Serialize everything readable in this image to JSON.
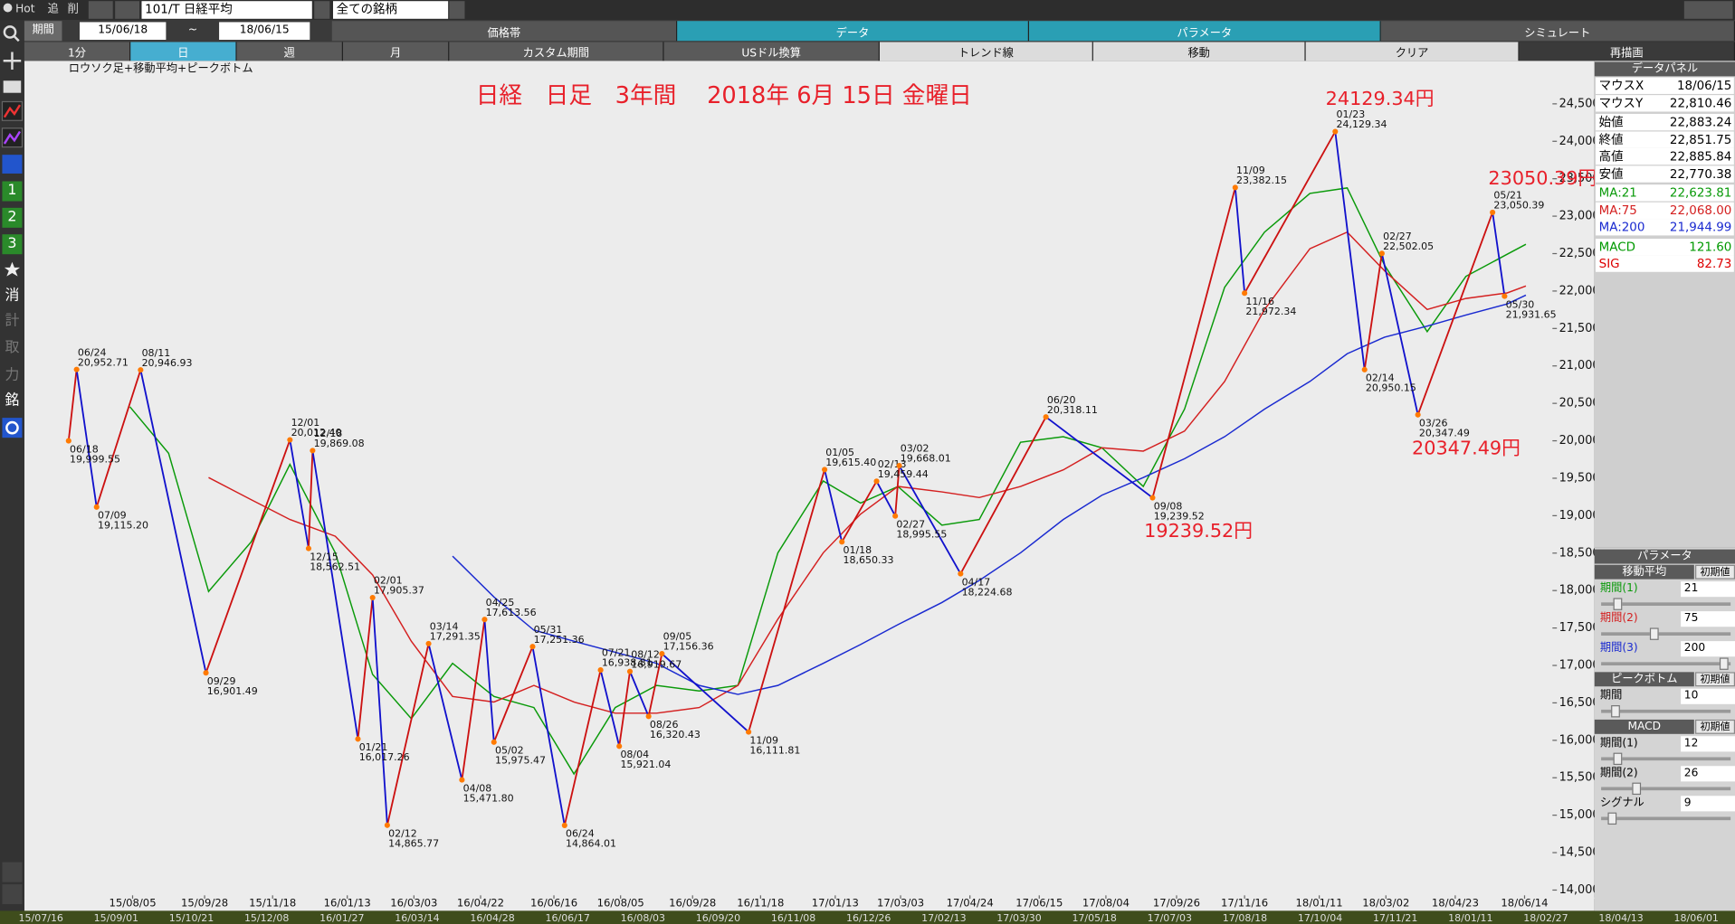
{
  "toolbar": {
    "hot": "Hot",
    "add": "追",
    "delete": "削",
    "symbol": "101/T 日経平均",
    "universe": "全ての銘柄",
    "period_label": "期間",
    "tilde": "~",
    "tabs": [
      "価格帯",
      "データ",
      "パラメータ",
      "シミュレート"
    ],
    "buttons": [
      "1分",
      "日",
      "週",
      "月",
      "カスタム期間",
      "USドル換算",
      "トレンド線",
      "移動",
      "クリア",
      "再描画"
    ]
  },
  "sidebar": [
    "1",
    "2",
    "3",
    "消",
    "計",
    "取",
    "力",
    "銘"
  ],
  "chart_data": {
    "type": "line",
    "title": "日経　日足　3年間　 2018年 6月 15日 金曜日",
    "subtitle": "ロウソク足+移動平均+ピークボトム",
    "annotations": [
      "24129.34円",
      "23050.39円",
      "20347.49円",
      "19239.52円"
    ],
    "xlim": [
      "15/06/18",
      "18/06/15"
    ],
    "xticks": [
      "15/08/05",
      "15/09/28",
      "15/11/18",
      "16/01/13",
      "16/03/03",
      "16/04/22",
      "16/06/16",
      "16/08/05",
      "16/09/28",
      "16/11/18",
      "17/01/13",
      "17/03/03",
      "17/04/24",
      "17/06/15",
      "17/08/04",
      "17/09/26",
      "17/11/16",
      "18/01/11",
      "18/03/02",
      "18/04/23",
      "18/06/14"
    ],
    "ylim": [
      13900,
      25075
    ],
    "yticks": [
      {
        "value": 14000,
        "label": "14,000"
      },
      {
        "value": 14500,
        "label": "14,500"
      },
      {
        "value": 15000,
        "label": "15,000"
      },
      {
        "value": 15500,
        "label": "15,500"
      },
      {
        "value": 16000,
        "label": "16,000"
      },
      {
        "value": 16500,
        "label": "16,500"
      },
      {
        "value": 17000,
        "label": "17,000"
      },
      {
        "value": 17500,
        "label": "17,500"
      },
      {
        "value": 18000,
        "label": "18,000"
      },
      {
        "value": 18500,
        "label": "18,500"
      },
      {
        "value": 19000,
        "label": "19,000"
      },
      {
        "value": 19500,
        "label": "19,500"
      },
      {
        "value": 20000,
        "label": "20,000"
      },
      {
        "value": 20500,
        "label": "20,500"
      },
      {
        "value": 21000,
        "label": "21,000"
      },
      {
        "value": 21500,
        "label": "21,500"
      },
      {
        "value": 22000,
        "label": "22,000"
      },
      {
        "value": 22500,
        "label": "22,500"
      },
      {
        "value": 23000,
        "label": "23,000"
      },
      {
        "value": 23500,
        "label": "23,500"
      },
      {
        "value": 24000,
        "label": "24,000"
      },
      {
        "value": 24500,
        "label": "24,500"
      }
    ],
    "x": [
      "15/07/01",
      "15/08/03",
      "15/09/01",
      "15/10/01",
      "15/11/02",
      "15/12/01",
      "16/01/04",
      "16/02/01",
      "16/03/01",
      "16/04/01",
      "16/05/02",
      "16/06/01",
      "16/07/01",
      "16/08/01",
      "16/09/01",
      "16/10/03",
      "16/11/01",
      "16/12/01",
      "17/01/04",
      "17/02/01",
      "17/03/01",
      "17/04/03",
      "17/05/01",
      "17/06/01",
      "17/07/03",
      "17/08/01",
      "17/09/01",
      "17/10/02",
      "17/11/01",
      "17/12/01",
      "18/01/04",
      "18/02/01",
      "18/03/01",
      "18/04/02",
      "18/05/01",
      "18/06/01",
      "18/06/15"
    ],
    "series": [
      {
        "name": "MA:21",
        "color": "#0a9a0a",
        "values": [
          null,
          20454,
          19833,
          17988,
          18652,
          19686,
          18505,
          16880,
          16290,
          17028,
          16585,
          16437,
          15551,
          16437,
          16733,
          16659,
          16733,
          18505,
          19464,
          19169,
          19390,
          18874,
          18948,
          19981,
          20055,
          19907,
          19390,
          20424,
          22049,
          22787,
          23304,
          23378,
          22344,
          21458,
          22196,
          22492,
          22624
        ]
      },
      {
        "name": "MA:75",
        "color": "#d42020",
        "values": [
          null,
          null,
          null,
          19509,
          19213,
          18948,
          18726,
          18209,
          17323,
          16585,
          16511,
          16733,
          16511,
          16363,
          16363,
          16437,
          16733,
          17619,
          18505,
          19021,
          19390,
          19317,
          19243,
          19390,
          19612,
          19907,
          19863,
          20129,
          20793,
          21753,
          22566,
          22787,
          22270,
          21753,
          21901,
          21975,
          22068
        ]
      },
      {
        "name": "MA:200",
        "color": "#1a2ad0",
        "values": [
          null,
          null,
          null,
          null,
          null,
          null,
          null,
          null,
          null,
          18460,
          17914,
          17471,
          17323,
          17176,
          17028,
          16733,
          16614,
          16733,
          17028,
          17279,
          17545,
          17840,
          18135,
          18505,
          18948,
          19273,
          19509,
          19760,
          20055,
          20424,
          20793,
          21163,
          21384,
          21532,
          21680,
          21827,
          21945
        ]
      }
    ],
    "peaks": {
      "color": "#ff7a00",
      "up_color": "#cc1111",
      "down_color": "#1111cc",
      "dates": [
        "06/18",
        "06/24",
        "07/09",
        "08/11",
        "09/29",
        "12/01",
        "12/15",
        "12/18",
        "01/21",
        "02/01",
        "02/12",
        "03/14",
        "04/08",
        "04/25",
        "05/02",
        "05/31",
        "06/24",
        "07/21",
        "08/04",
        "08/12",
        "08/26",
        "09/05",
        "11/09",
        "01/05",
        "01/18",
        "02/13",
        "02/27",
        "03/02",
        "04/17",
        "06/20",
        "09/08",
        "11/09",
        "11/16",
        "01/23",
        "02/14",
        "02/27",
        "03/26",
        "05/21",
        "05/30"
      ],
      "values": [
        19999.55,
        20952.71,
        19115.2,
        20946.93,
        16901.49,
        20012.4,
        18562.51,
        19869.08,
        16017.26,
        17905.37,
        14865.77,
        17291.35,
        15471.8,
        17613.56,
        15975.47,
        17251.36,
        14864.01,
        16938.81,
        15921.04,
        16919.67,
        16320.43,
        17156.36,
        16111.81,
        19615.4,
        18650.33,
        19459.44,
        18995.55,
        19668.01,
        18224.68,
        20318.11,
        19239.52,
        23382.15,
        21972.34,
        24129.34,
        20950.15,
        22502.05,
        20347.49,
        23050.39,
        21931.65
      ],
      "value_labels": [
        "19,999.55",
        "20,952.71",
        "19,115.20",
        "20,946.93",
        "16,901.49",
        "20,012.40",
        "18,562.51",
        "19,869.08",
        "16,017.26",
        "17,905.37",
        "14,865.77",
        "17,291.35",
        "15,471.80",
        "17,613.56",
        "15,975.47",
        "17,251.36",
        "14,864.01",
        "16,938.81",
        "15,921.04",
        "16,919.67",
        "16,320.43",
        "17,156.36",
        "16,111.81",
        "19,615.40",
        "18,650.33",
        "19,459.44",
        "18,995.55",
        "19,668.01",
        "18,224.68",
        "20,318.11",
        "19,239.52",
        "23,382.15",
        "21,972.34",
        "24,129.34",
        "20,950.15",
        "22,502.05",
        "20,347.49",
        "23,050.39",
        "21,931.65"
      ]
    }
  },
  "overview": {
    "labels": [
      "15/07/16",
      "15/09/01",
      "15/10/21",
      "15/12/08",
      "16/01/27",
      "16/03/14",
      "16/04/28",
      "16/06/17",
      "16/08/03",
      "16/09/20",
      "16/11/08",
      "16/12/26",
      "17/02/13",
      "17/03/30",
      "17/05/18",
      "17/07/03",
      "17/08/18",
      "17/10/04",
      "17/11/21",
      "18/01/11",
      "18/02/27",
      "18/04/13",
      "18/06/01"
    ]
  },
  "data_panel": {
    "title": "データパネル",
    "rows": [
      [
        "マウスX",
        "18/06/15"
      ],
      [
        "マウスY",
        "22,810.46"
      ],
      [
        "始値",
        "22,883.24"
      ],
      [
        "終値",
        "22,851.75"
      ],
      [
        "高値",
        "22,885.84"
      ],
      [
        "安値",
        "22,770.38"
      ],
      [
        "MA:21",
        "22,623.81"
      ],
      [
        "MA:75",
        "22,068.00"
      ],
      [
        "MA:200",
        "21,944.99"
      ],
      [
        "MACD",
        "121.60"
      ],
      [
        "SIG",
        "82.73"
      ]
    ]
  },
  "parameter_panel": {
    "title": "パラメータ",
    "groups": [
      {
        "name": "移動平均",
        "reset": "初期値",
        "params": [
          [
            "期間(1)",
            "21"
          ],
          [
            "期間(2)",
            "75"
          ],
          [
            "期間(3)",
            "200"
          ]
        ]
      },
      {
        "name": "ピークボトム",
        "reset": "初期値",
        "params": [
          [
            "期間",
            "10"
          ]
        ]
      },
      {
        "name": "MACD",
        "reset": "初期値",
        "params": [
          [
            "期間(1)",
            "12"
          ],
          [
            "期間(2)",
            "26"
          ],
          [
            "シグナル",
            "9"
          ]
        ]
      }
    ]
  }
}
